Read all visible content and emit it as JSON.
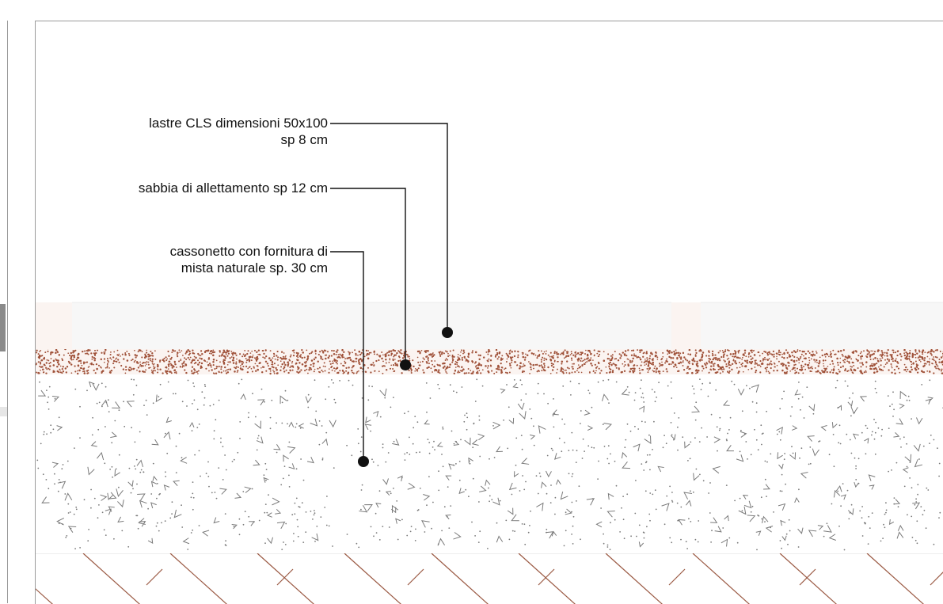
{
  "labels": [
    {
      "lines": [
        "lastre CLS dimensioni 50x100",
        "sp 8 cm"
      ]
    },
    {
      "lines": [
        "sabbia di allettamento sp 12 cm"
      ]
    },
    {
      "lines": [
        "cassonetto con fornitura di",
        "mista naturale sp. 30 cm"
      ]
    }
  ],
  "colors": {
    "sand": "#a0523a",
    "gravel": "#7a7a7a",
    "soil_hatch": "#9b5a44",
    "slab_fill": "#f7f7f7",
    "leader": "#111111"
  }
}
